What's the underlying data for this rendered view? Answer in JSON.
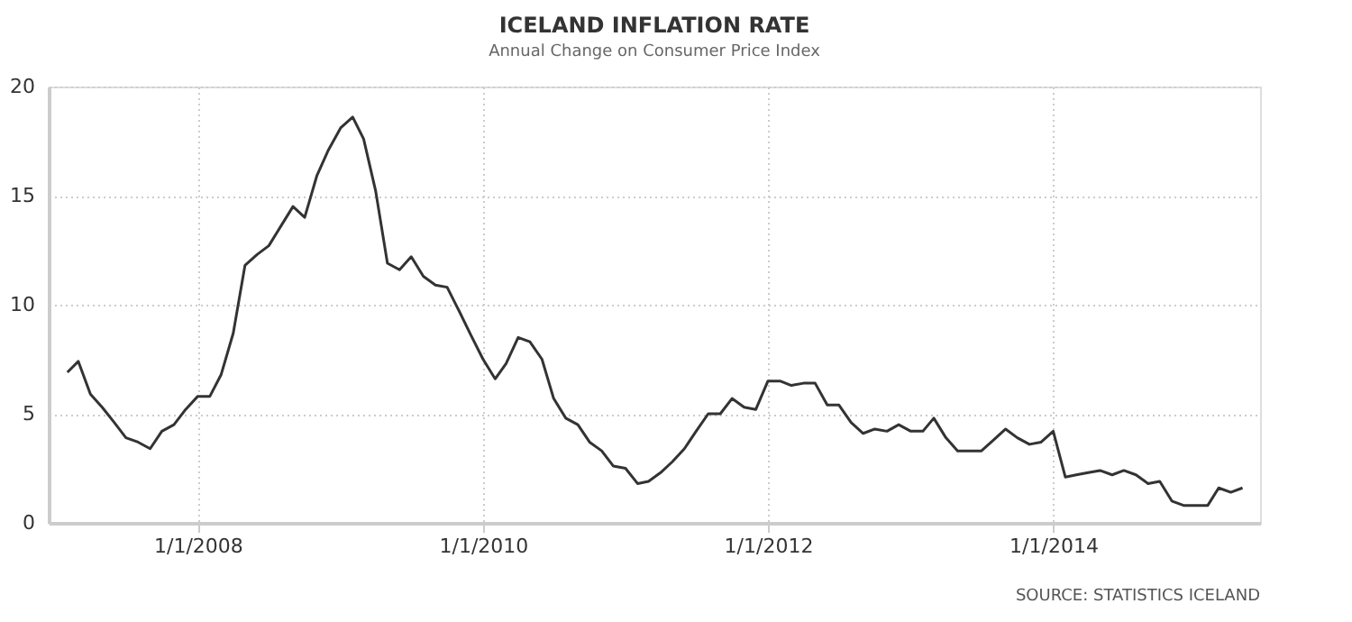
{
  "chart_data": {
    "type": "line",
    "title": "ICELAND INFLATION RATE",
    "subtitle": "Annual Change on Consumer Price Index",
    "x": [
      "2007-02",
      "2007-03",
      "2007-04",
      "2007-05",
      "2007-06",
      "2007-07",
      "2007-08",
      "2007-09",
      "2007-10",
      "2007-11",
      "2007-12",
      "2008-01",
      "2008-02",
      "2008-03",
      "2008-04",
      "2008-05",
      "2008-06",
      "2008-07",
      "2008-08",
      "2008-09",
      "2008-10",
      "2008-11",
      "2008-12",
      "2009-01",
      "2009-02",
      "2009-03",
      "2009-04",
      "2009-05",
      "2009-06",
      "2009-07",
      "2009-08",
      "2009-09",
      "2009-10",
      "2009-11",
      "2009-12",
      "2010-01",
      "2010-02",
      "2010-03",
      "2010-04",
      "2010-05",
      "2010-06",
      "2010-07",
      "2010-08",
      "2010-09",
      "2010-10",
      "2010-11",
      "2010-12",
      "2011-01",
      "2011-02",
      "2011-03",
      "2011-04",
      "2011-05",
      "2011-06",
      "2011-07",
      "2011-08",
      "2011-09",
      "2011-10",
      "2011-11",
      "2011-12",
      "2012-01",
      "2012-02",
      "2012-03",
      "2012-04",
      "2012-05",
      "2012-06",
      "2012-07",
      "2012-08",
      "2012-09",
      "2012-10",
      "2012-11",
      "2012-12",
      "2013-01",
      "2013-02",
      "2013-03",
      "2013-04",
      "2013-05",
      "2013-06",
      "2013-07",
      "2013-08",
      "2013-09",
      "2013-10",
      "2013-11",
      "2013-12",
      "2014-01",
      "2014-02",
      "2014-03",
      "2014-04",
      "2014-05",
      "2014-06",
      "2014-07",
      "2014-08",
      "2014-09",
      "2014-10",
      "2014-11",
      "2014-12",
      "2015-01",
      "2015-02",
      "2015-03",
      "2015-04",
      "2015-05"
    ],
    "series": [
      {
        "color": "#333333",
        "values": [
          6.9,
          7.4,
          5.9,
          5.3,
          4.6,
          3.9,
          3.7,
          3.4,
          4.2,
          4.5,
          5.2,
          5.8,
          5.8,
          6.8,
          8.7,
          11.8,
          12.3,
          12.7,
          13.6,
          14.5,
          14.0,
          15.9,
          17.1,
          18.1,
          18.6,
          17.6,
          15.2,
          11.9,
          11.6,
          12.2,
          11.3,
          10.9,
          10.8,
          9.7,
          8.6,
          7.5,
          6.6,
          7.3,
          8.5,
          8.3,
          7.5,
          5.7,
          4.8,
          4.5,
          3.7,
          3.3,
          2.6,
          2.5,
          1.8,
          1.9,
          2.3,
          2.8,
          3.4,
          4.2,
          5.0,
          5.0,
          5.7,
          5.3,
          5.2,
          6.5,
          6.5,
          6.3,
          6.4,
          6.4,
          5.4,
          5.4,
          4.6,
          4.1,
          4.3,
          4.2,
          4.5,
          4.2,
          4.2,
          4.8,
          3.9,
          3.3,
          3.3,
          3.3,
          3.8,
          4.3,
          3.9,
          3.6,
          3.7,
          4.2,
          2.1,
          2.2,
          2.3,
          2.4,
          2.2,
          2.4,
          2.2,
          1.8,
          1.9,
          1.0,
          0.8,
          0.8,
          0.8,
          1.6,
          1.4,
          1.6
        ]
      }
    ],
    "xlim": [
      "2006-12-15",
      "2015-06-15"
    ],
    "xticks": [
      {
        "value": "2008-01-01",
        "label": "1/1/2008"
      },
      {
        "value": "2010-01-01",
        "label": "1/1/2010"
      },
      {
        "value": "2012-01-01",
        "label": "1/1/2012"
      },
      {
        "value": "2014-01-01",
        "label": "1/1/2014"
      }
    ],
    "ylim": [
      0,
      20
    ],
    "yticks": [
      0,
      5,
      10,
      15,
      20
    ],
    "grid": true,
    "legend": false,
    "marker": "none",
    "line_style": "solid",
    "annotations": [
      "SOURCE: STATISTICS ICELAND"
    ]
  }
}
